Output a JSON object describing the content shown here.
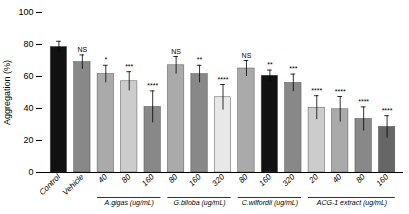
{
  "chart_data": {
    "type": "bar",
    "categories": [
      "Control",
      "Vehicle",
      "40",
      "80",
      "160",
      "80",
      "160",
      "320",
      "80",
      "160",
      "320",
      "20",
      "40",
      "80",
      "160"
    ],
    "values": [
      78.5,
      69.0,
      61.5,
      57.0,
      41.0,
      67.0,
      61.5,
      47.0,
      65.0,
      60.5,
      56.0,
      40.5,
      39.5,
      33.5,
      28.5
    ],
    "errors": [
      3.5,
      4.5,
      5.5,
      6.0,
      10.0,
      5.5,
      5.5,
      8.0,
      5.0,
      3.5,
      5.5,
      7.5,
      8.0,
      7.5,
      7.0
    ],
    "colors": [
      "#111111",
      "#888888",
      "#aaaaaa",
      "#cccccc",
      "#888888",
      "#aaaaaa",
      "#888888",
      "#e8e8e8",
      "#aaaaaa",
      "#111111",
      "#888888",
      "#cccccc",
      "#aaaaaa",
      "#888888",
      "#666666"
    ],
    "significance": [
      null,
      "NS",
      "*",
      "***",
      "****",
      "NS",
      "**",
      "****",
      "NS",
      "**",
      "***",
      "****",
      "****",
      "****",
      "****"
    ],
    "groups": [
      {
        "name": "A.gigas (ug/mL)",
        "start": 2,
        "end": 4
      },
      {
        "name": "G.biloba (ug/mL)",
        "start": 5,
        "end": 7
      },
      {
        "name": "C.wilfordii (ug/mL)",
        "start": 8,
        "end": 10
      },
      {
        "name": "ACG-1 extract (ug/mL)",
        "start": 11,
        "end": 14
      }
    ],
    "ylabel": "Aggregation (%)",
    "ylim": [
      0,
      100
    ],
    "yticks": [
      0,
      20,
      40,
      60,
      80,
      100
    ],
    "grid": false
  }
}
